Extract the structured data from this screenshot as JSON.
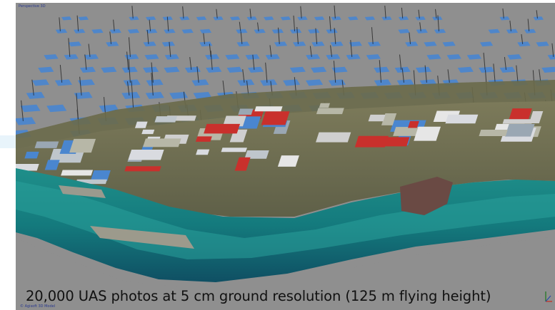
{
  "viewport": {
    "title": "Perspective 3D",
    "footer": "© Agisoft 3D Model",
    "caption": "20,000 UAS photos at 5 cm ground resolution (125 m flying height)",
    "icons": [
      "axis-gizmo-icon"
    ]
  },
  "colors": {
    "background": "#8f8f8f",
    "camera_plane": "#4a86cf",
    "water_deep": "#16566a",
    "water_shallow": "#2aa19a",
    "land": "#6f6b52",
    "roof_red": "#c9302c"
  }
}
